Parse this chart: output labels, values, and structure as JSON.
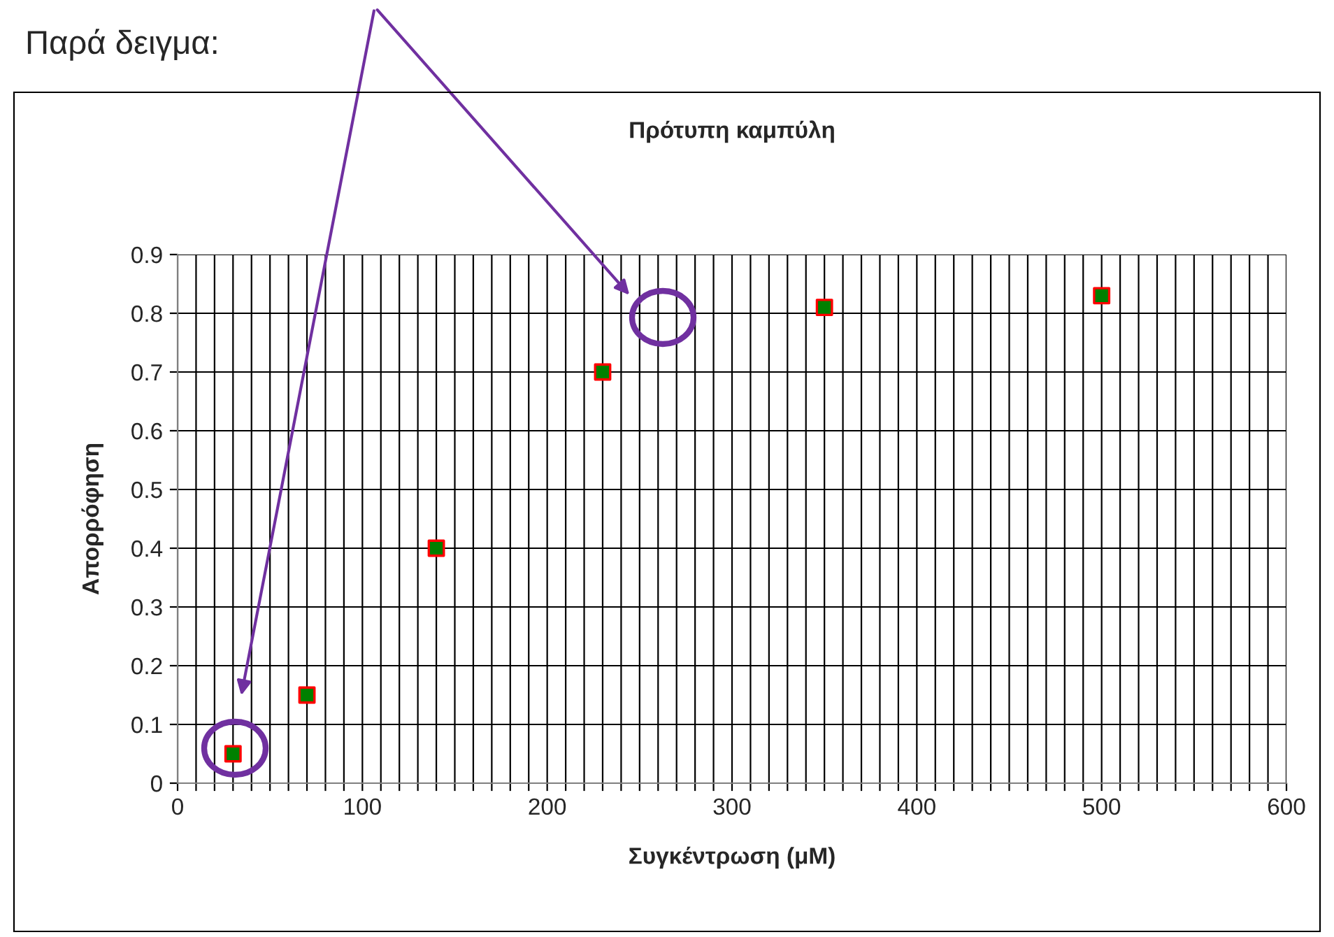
{
  "chart_data": {
    "type": "scatter",
    "title": "Πρότυπη καμπύλη",
    "xlabel": "Συγκέντρωση (μM)",
    "ylabel": "Απορρόφηση",
    "annotations": [
      "Παρά δειγμα:"
    ],
    "x": [
      30,
      70,
      140,
      230,
      350,
      500
    ],
    "series": [
      {
        "color": "#008000",
        "values": [
          0.05,
          0.15,
          0.4,
          0.7,
          0.81,
          0.83
        ]
      }
    ],
    "marker": "square",
    "xlim": [
      0,
      600
    ],
    "xticks": [
      0,
      {
        "value": 10,
        "label": null
      },
      {
        "value": 20,
        "label": null
      },
      {
        "value": 30,
        "label": null
      },
      {
        "value": 40,
        "label": null
      },
      {
        "value": 50,
        "label": null
      },
      {
        "value": 60,
        "label": null
      },
      {
        "value": 70,
        "label": null
      },
      {
        "value": 80,
        "label": null
      },
      {
        "value": 90,
        "label": null
      },
      100,
      {
        "value": 110,
        "label": null
      },
      {
        "value": 120,
        "label": null
      },
      {
        "value": 130,
        "label": null
      },
      {
        "value": 140,
        "label": null
      },
      {
        "value": 150,
        "label": null
      },
      {
        "value": 160,
        "label": null
      },
      {
        "value": 170,
        "label": null
      },
      {
        "value": 180,
        "label": null
      },
      {
        "value": 190,
        "label": null
      },
      200,
      {
        "value": 210,
        "label": null
      },
      {
        "value": 220,
        "label": null
      },
      {
        "value": 230,
        "label": null
      },
      {
        "value": 240,
        "label": null
      },
      {
        "value": 250,
        "label": null
      },
      {
        "value": 260,
        "label": null
      },
      {
        "value": 270,
        "label": null
      },
      {
        "value": 280,
        "label": null
      },
      {
        "value": 290,
        "label": null
      },
      300,
      {
        "value": 310,
        "label": null
      },
      {
        "value": 320,
        "label": null
      },
      {
        "value": 330,
        "label": null
      },
      {
        "value": 340,
        "label": null
      },
      {
        "value": 350,
        "label": null
      },
      {
        "value": 360,
        "label": null
      },
      {
        "value": 370,
        "label": null
      },
      {
        "value": 380,
        "label": null
      },
      {
        "value": 390,
        "label": null
      },
      400,
      {
        "value": 410,
        "label": null
      },
      {
        "value": 420,
        "label": null
      },
      {
        "value": 430,
        "label": null
      },
      {
        "value": 440,
        "label": null
      },
      {
        "value": 450,
        "label": null
      },
      {
        "value": 460,
        "label": null
      },
      {
        "value": 470,
        "label": null
      },
      {
        "value": 480,
        "label": null
      },
      {
        "value": 490,
        "label": null
      },
      500,
      {
        "value": 510,
        "label": null
      },
      {
        "value": 520,
        "label": null
      },
      {
        "value": 530,
        "label": null
      },
      {
        "value": 540,
        "label": null
      },
      {
        "value": 550,
        "label": null
      },
      {
        "value": 560,
        "label": null
      },
      {
        "value": 570,
        "label": null
      },
      {
        "value": 580,
        "label": null
      },
      {
        "value": 590,
        "label": null
      },
      600
    ],
    "ylim": [
      0,
      0.9
    ],
    "yticks": [
      0,
      0.1,
      0.2,
      0.3,
      0.4,
      0.5,
      0.6,
      0.7,
      0.8,
      0.9
    ],
    "grid": true
  }
}
